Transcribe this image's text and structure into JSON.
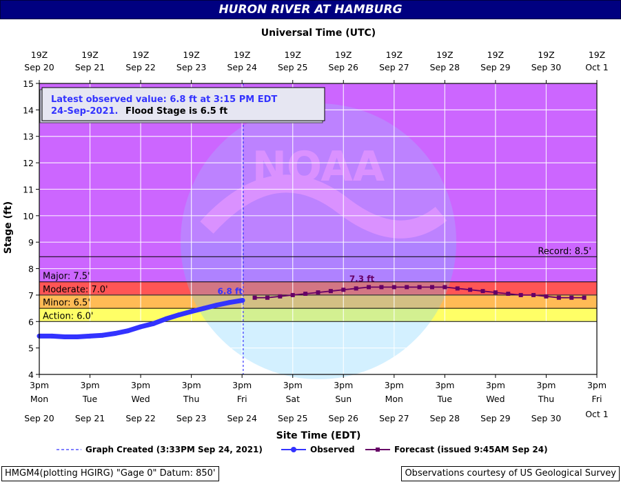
{
  "header": {
    "title": "HURON RIVER AT HAMBURG",
    "top_axis_label": "Universal Time (UTC)"
  },
  "chart_data": {
    "type": "line",
    "title": "HURON RIVER AT HAMBURG",
    "xlabel": "Site Time (EDT)",
    "ylabel": "Stage (ft)",
    "xlim": [
      "2021-09-20 15:00",
      "2021-10-01 15:00"
    ],
    "ylim": [
      4,
      15
    ],
    "grid": true,
    "y_ticks": [
      "4",
      "5",
      "6",
      "7",
      "8",
      "9",
      "10",
      "11",
      "12",
      "13",
      "14",
      "15"
    ],
    "bottom_ticks": [
      {
        "time": "3pm",
        "day": "Mon",
        "date": "Sep 20"
      },
      {
        "time": "3pm",
        "day": "Tue",
        "date": "Sep 21"
      },
      {
        "time": "3pm",
        "day": "Wed",
        "date": "Sep 22"
      },
      {
        "time": "3pm",
        "day": "Thu",
        "date": "Sep 23"
      },
      {
        "time": "3pm",
        "day": "Fri",
        "date": "Sep 24"
      },
      {
        "time": "3pm",
        "day": "Sat",
        "date": "Sep 25"
      },
      {
        "time": "3pm",
        "day": "Sun",
        "date": "Sep 26"
      },
      {
        "time": "3pm",
        "day": "Mon",
        "date": "Sep 27"
      },
      {
        "time": "3pm",
        "day": "Tue",
        "date": "Sep 28"
      },
      {
        "time": "3pm",
        "day": "Wed",
        "date": "Sep 29"
      },
      {
        "time": "3pm",
        "day": "Thu",
        "date": "Sep 30"
      },
      {
        "time": "3pm",
        "day": "Fri",
        "date": "Oct 1"
      }
    ],
    "top_ticks": [
      {
        "time": "19Z",
        "date": "Sep 20"
      },
      {
        "time": "19Z",
        "date": "Sep 21"
      },
      {
        "time": "19Z",
        "date": "Sep 22"
      },
      {
        "time": "19Z",
        "date": "Sep 23"
      },
      {
        "time": "19Z",
        "date": "Sep 24"
      },
      {
        "time": "19Z",
        "date": "Sep 25"
      },
      {
        "time": "19Z",
        "date": "Sep 26"
      },
      {
        "time": "19Z",
        "date": "Sep 27"
      },
      {
        "time": "19Z",
        "date": "Sep 28"
      },
      {
        "time": "19Z",
        "date": "Sep 29"
      },
      {
        "time": "19Z",
        "date": "Sep 30"
      },
      {
        "time": "19Z",
        "date": "Oct 1"
      }
    ],
    "flood_categories": [
      {
        "label": "Action: 6.0'",
        "from": 6.0,
        "to": 6.5,
        "color": "#ffff66"
      },
      {
        "label": "Minor: 6.5'",
        "from": 6.5,
        "to": 7.0,
        "color": "#ffbb55"
      },
      {
        "label": "Moderate: 7.0'",
        "from": 7.0,
        "to": 7.5,
        "color": "#ff5555"
      },
      {
        "label": "Major: 7.5'",
        "from": 7.5,
        "to": 15,
        "color": "#cc66ff"
      }
    ],
    "record": {
      "label": "Record: 8.5'",
      "value": 8.45
    },
    "graph_created": {
      "date": "2021-09-24 15:33"
    },
    "observed": {
      "name": "Observed",
      "color": "#3333ff",
      "x": [
        "2021-09-20 15:00",
        "2021-09-20 21:00",
        "2021-09-21 03:00",
        "2021-09-21 09:00",
        "2021-09-21 15:00",
        "2021-09-21 21:00",
        "2021-09-22 03:00",
        "2021-09-22 09:00",
        "2021-09-22 15:00",
        "2021-09-22 21:00",
        "2021-09-23 03:00",
        "2021-09-23 09:00",
        "2021-09-23 15:00",
        "2021-09-23 21:00",
        "2021-09-24 03:00",
        "2021-09-24 09:00",
        "2021-09-24 15:15"
      ],
      "y": [
        5.45,
        5.45,
        5.42,
        5.42,
        5.45,
        5.48,
        5.55,
        5.65,
        5.8,
        5.92,
        6.1,
        6.25,
        6.38,
        6.5,
        6.62,
        6.72,
        6.8
      ],
      "label": "6.8 ft"
    },
    "forecast": {
      "name": "Forecast (issued 9:45AM Sep 24)",
      "color": "#660066",
      "x": [
        "2021-09-24 21:00",
        "2021-09-25 03:00",
        "2021-09-25 09:00",
        "2021-09-25 15:00",
        "2021-09-25 21:00",
        "2021-09-26 03:00",
        "2021-09-26 09:00",
        "2021-09-26 15:00",
        "2021-09-26 21:00",
        "2021-09-27 03:00",
        "2021-09-27 09:00",
        "2021-09-27 15:00",
        "2021-09-27 21:00",
        "2021-09-28 03:00",
        "2021-09-28 09:00",
        "2021-09-28 15:00",
        "2021-09-28 21:00",
        "2021-09-29 03:00",
        "2021-09-29 09:00",
        "2021-09-29 15:00",
        "2021-09-29 21:00",
        "2021-09-30 03:00",
        "2021-09-30 09:00",
        "2021-09-30 15:00",
        "2021-09-30 21:00",
        "2021-10-01 03:00",
        "2021-10-01 09:00"
      ],
      "y": [
        6.9,
        6.9,
        6.95,
        7.0,
        7.05,
        7.1,
        7.15,
        7.2,
        7.25,
        7.3,
        7.3,
        7.3,
        7.3,
        7.3,
        7.3,
        7.3,
        7.25,
        7.2,
        7.15,
        7.1,
        7.05,
        7.0,
        7.0,
        6.95,
        6.9,
        6.9,
        6.9
      ],
      "label": "7.3 ft"
    },
    "annotation": {
      "line1": "Latest observed value: 6.8 ft at 3:15 PM EDT",
      "line2_part1": "24-Sep-2021.",
      "line2_part2": "Flood Stage is 6.5 ft"
    },
    "legend": {
      "graph_created": "Graph Created (3:33PM Sep 24, 2021)",
      "observed": "Observed",
      "forecast": "Forecast (issued 9:45AM Sep 24)"
    },
    "colors": {
      "observed": "#3333ff",
      "forecast": "#660066",
      "title_bar": "#000080",
      "graph_created_line": "#3333ff"
    }
  },
  "footer": {
    "left": "HMGM4(plotting HGIRG) \"Gage 0\" Datum: 850'",
    "right": "Observations courtesy of US Geological Survey"
  }
}
